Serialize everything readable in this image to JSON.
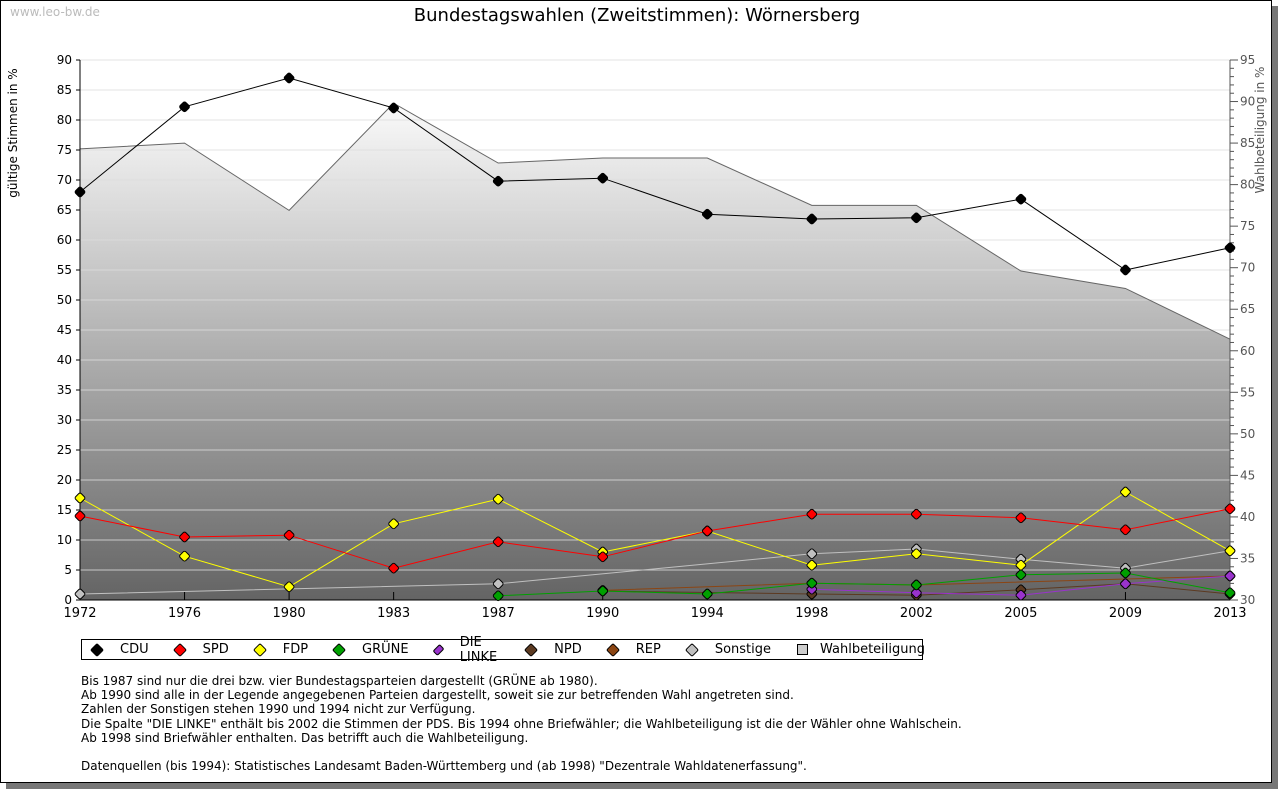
{
  "source_label": "www.leo-bw.de",
  "chart_data": {
    "type": "line",
    "title": "Bundestagswahlen (Zweitstimmen): Wörnersberg",
    "ylabel": "gültige Stimmen in %",
    "y2label": "Wahlbeteiligung in %",
    "ylim": [
      0,
      90
    ],
    "y2lim": [
      30,
      95
    ],
    "grid": true,
    "legend_position": "bottom",
    "categories": [
      "1972",
      "1976",
      "1980",
      "1983",
      "1987",
      "1990",
      "1994",
      "1998",
      "2002",
      "2005",
      "2009",
      "2013"
    ],
    "yticks": [
      "0",
      "5",
      "10",
      "15",
      "20",
      "25",
      "30",
      "35",
      "40",
      "45",
      "50",
      "55",
      "60",
      "65",
      "70",
      "75",
      "80",
      "85",
      "90"
    ],
    "y2ticks": [
      "30",
      "35",
      "40",
      "45",
      "50",
      "55",
      "60",
      "65",
      "70",
      "75",
      "80",
      "85",
      "90",
      "95"
    ],
    "series": [
      {
        "name": "CDU",
        "color": "#000000",
        "values": [
          68.0,
          82.2,
          87.0,
          82.0,
          69.8,
          70.3,
          64.3,
          63.5,
          63.7,
          66.8,
          55.0,
          58.7
        ]
      },
      {
        "name": "SPD",
        "color": "#ff0000",
        "values": [
          14.0,
          10.5,
          10.8,
          5.3,
          9.7,
          7.2,
          11.5,
          14.3,
          14.3,
          13.7,
          11.7,
          15.2
        ]
      },
      {
        "name": "FDP",
        "color": "#ffff00",
        "values": [
          17.0,
          7.3,
          2.2,
          12.7,
          16.8,
          8.0,
          11.5,
          5.8,
          7.7,
          5.8,
          18.0,
          8.2
        ]
      },
      {
        "name": "GRÜNE",
        "color": "#00a000",
        "values": [
          null,
          null,
          null,
          null,
          0.7,
          1.5,
          1.0,
          2.8,
          2.5,
          4.2,
          4.5,
          1.2
        ]
      },
      {
        "name": "DIE LINKE",
        "color": "#9933cc",
        "values": [
          null,
          null,
          null,
          null,
          null,
          null,
          null,
          1.8,
          1.2,
          0.8,
          2.7,
          4.0
        ]
      },
      {
        "name": "NPD",
        "color": "#5c3a21",
        "values": [
          null,
          null,
          null,
          null,
          null,
          1.5,
          null,
          1.0,
          0.8,
          1.7,
          2.7,
          1.0
        ]
      },
      {
        "name": "REP",
        "color": "#8b4513",
        "values": [
          null,
          null,
          null,
          null,
          null,
          1.6,
          null,
          2.8,
          2.5,
          null,
          null,
          4.0
        ]
      },
      {
        "name": "Sonstige",
        "color": "#c0c0c0",
        "values": [
          1.0,
          null,
          null,
          null,
          2.7,
          null,
          null,
          7.7,
          8.5,
          6.8,
          5.3,
          8.2
        ]
      }
    ],
    "turnout": {
      "name": "Wahlbeteiligung",
      "axis": "right",
      "values": [
        84.3,
        85.0,
        76.9,
        89.8,
        82.6,
        83.2,
        83.2,
        77.5,
        77.5,
        69.6,
        67.5,
        61.4
      ]
    }
  },
  "notes": [
    "Bis 1987 sind nur die drei bzw. vier Bundestagsparteien dargestellt (GRÜNE ab 1980).",
    "Ab 1990 sind alle in der Legende angegebenen Parteien dargestellt, soweit sie zur betreffenden Wahl angetreten sind.",
    "Zahlen der Sonstigen stehen 1990 und 1994 nicht zur Verfügung.",
    "Die Spalte \"DIE LINKE\" enthält bis 2002 die Stimmen der PDS. Bis 1994 ohne Briefwähler; die Wahlbeteiligung ist die der Wähler ohne Wahlschein.",
    "Ab 1998 sind Briefwähler enthalten. Das betrifft auch die Wahlbeteiligung.",
    "",
    "Datenquellen (bis 1994): Statistisches Landesamt Baden-Württemberg und (ab 1998) \"Dezentrale Wahldatenerfassung\"."
  ]
}
